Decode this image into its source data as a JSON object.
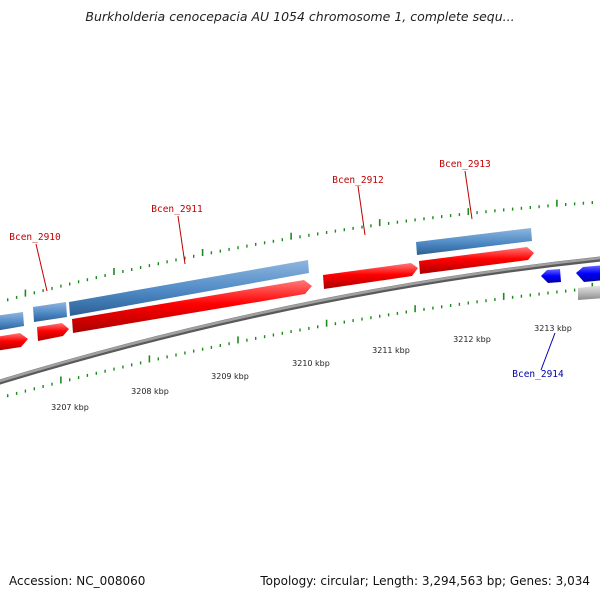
{
  "title": "Burkholderia cenocepacia AU 1054 chromosome 1, complete sequ...",
  "footer": {
    "accession": "Accession: NC_008060",
    "summary": "Topology: circular; Length: 3,294,563 bp; Genes: 3,034"
  },
  "ticks": [
    "3207 kbp",
    "3208 kbp",
    "3209 kbp",
    "3210 kbp",
    "3211 kbp",
    "3212 kbp",
    "3213 kbp"
  ],
  "genes": [
    {
      "label": "Bcen_2910",
      "strand": "forward",
      "color": "#c00000"
    },
    {
      "label": "Bcen_2911",
      "strand": "forward",
      "color": "#c00000"
    },
    {
      "label": "Bcen_2912",
      "strand": "forward",
      "color": "#c00000"
    },
    {
      "label": "Bcen_2913",
      "strand": "forward",
      "color": "#c00000"
    },
    {
      "label": "Bcen_2914",
      "strand": "reverse",
      "color": "#0000b0"
    }
  ],
  "colors": {
    "cds_forward": "#ff0000",
    "gene_forward": "#4f8ac5",
    "cds_reverse": "#0000ff",
    "gene_reverse": "#bbbbbb",
    "backbone": "#888888",
    "tick_marks": "#1e8a1e"
  }
}
